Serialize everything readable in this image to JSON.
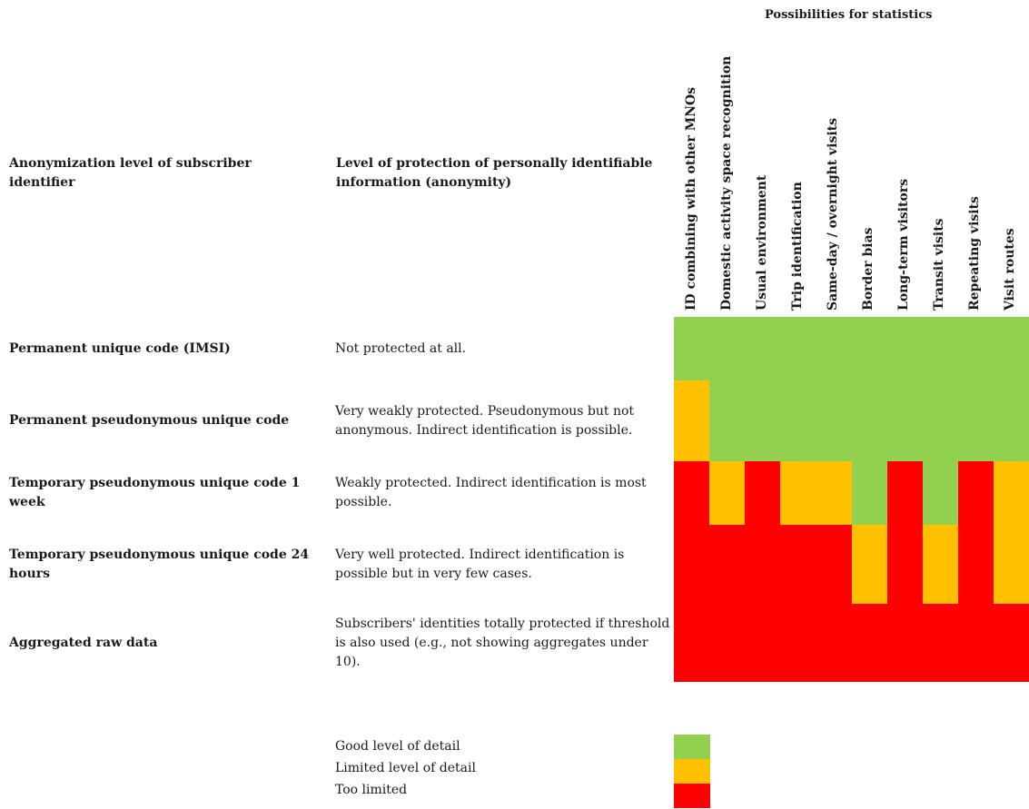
{
  "header": {
    "stats_title": "Possibilities for statistics",
    "col_anonymization": "Anonymization level of subscriber identifier",
    "col_protection": "Level of protection of personally identifiable information (anonymity)"
  },
  "colors": {
    "good": "#92d050",
    "limited": "#ffc000",
    "too_limited": "#ff0000"
  },
  "chart_data": {
    "type": "heatmap",
    "title": "Possibilities for statistics",
    "columns": [
      "ID combining with other MNOs",
      "Domestic activity space recognition",
      "Usual environment",
      "Trip identification",
      "Same-day / overnight visits",
      "Border bias",
      "Long-term visitors",
      "Transit visits",
      "Repeating visits",
      "Visit routes"
    ],
    "rows": [
      {
        "label": "Permanent unique code (IMSI)",
        "protection": "Not protected at all.",
        "values": [
          "good",
          "good",
          "good",
          "good",
          "good",
          "good",
          "good",
          "good",
          "good",
          "good"
        ]
      },
      {
        "label": "Permanent pseudonymous unique code",
        "protection": "Very weakly protected. Pseudonymous but not anonymous. Indirect identification is possible.",
        "values": [
          "limited",
          "good",
          "good",
          "good",
          "good",
          "good",
          "good",
          "good",
          "good",
          "good"
        ]
      },
      {
        "label": "Temporary pseudonymous unique code 1 week",
        "protection": "Weakly protected. Indirect identification is most possible.",
        "values": [
          "too_limited",
          "limited",
          "too_limited",
          "limited",
          "limited",
          "good",
          "too_limited",
          "good",
          "too_limited",
          "limited"
        ]
      },
      {
        "label": "Temporary pseudonymous unique code 24 hours",
        "protection": "Very well protected. Indirect identification is possible but in very few cases.",
        "values": [
          "too_limited",
          "too_limited",
          "too_limited",
          "too_limited",
          "too_limited",
          "limited",
          "too_limited",
          "limited",
          "too_limited",
          "limited"
        ]
      },
      {
        "label": "Aggregated raw data",
        "protection": "Subscribers' identities totally protected if threshold is also used (e.g., not showing aggregates under 10).",
        "values": [
          "too_limited",
          "too_limited",
          "too_limited",
          "too_limited",
          "too_limited",
          "too_limited",
          "too_limited",
          "too_limited",
          "too_limited",
          "too_limited"
        ]
      }
    ],
    "legend": [
      {
        "key": "good",
        "label": "Good level of detail"
      },
      {
        "key": "limited",
        "label": "Limited level of detail"
      },
      {
        "key": "too_limited",
        "label": "Too limited"
      }
    ]
  }
}
